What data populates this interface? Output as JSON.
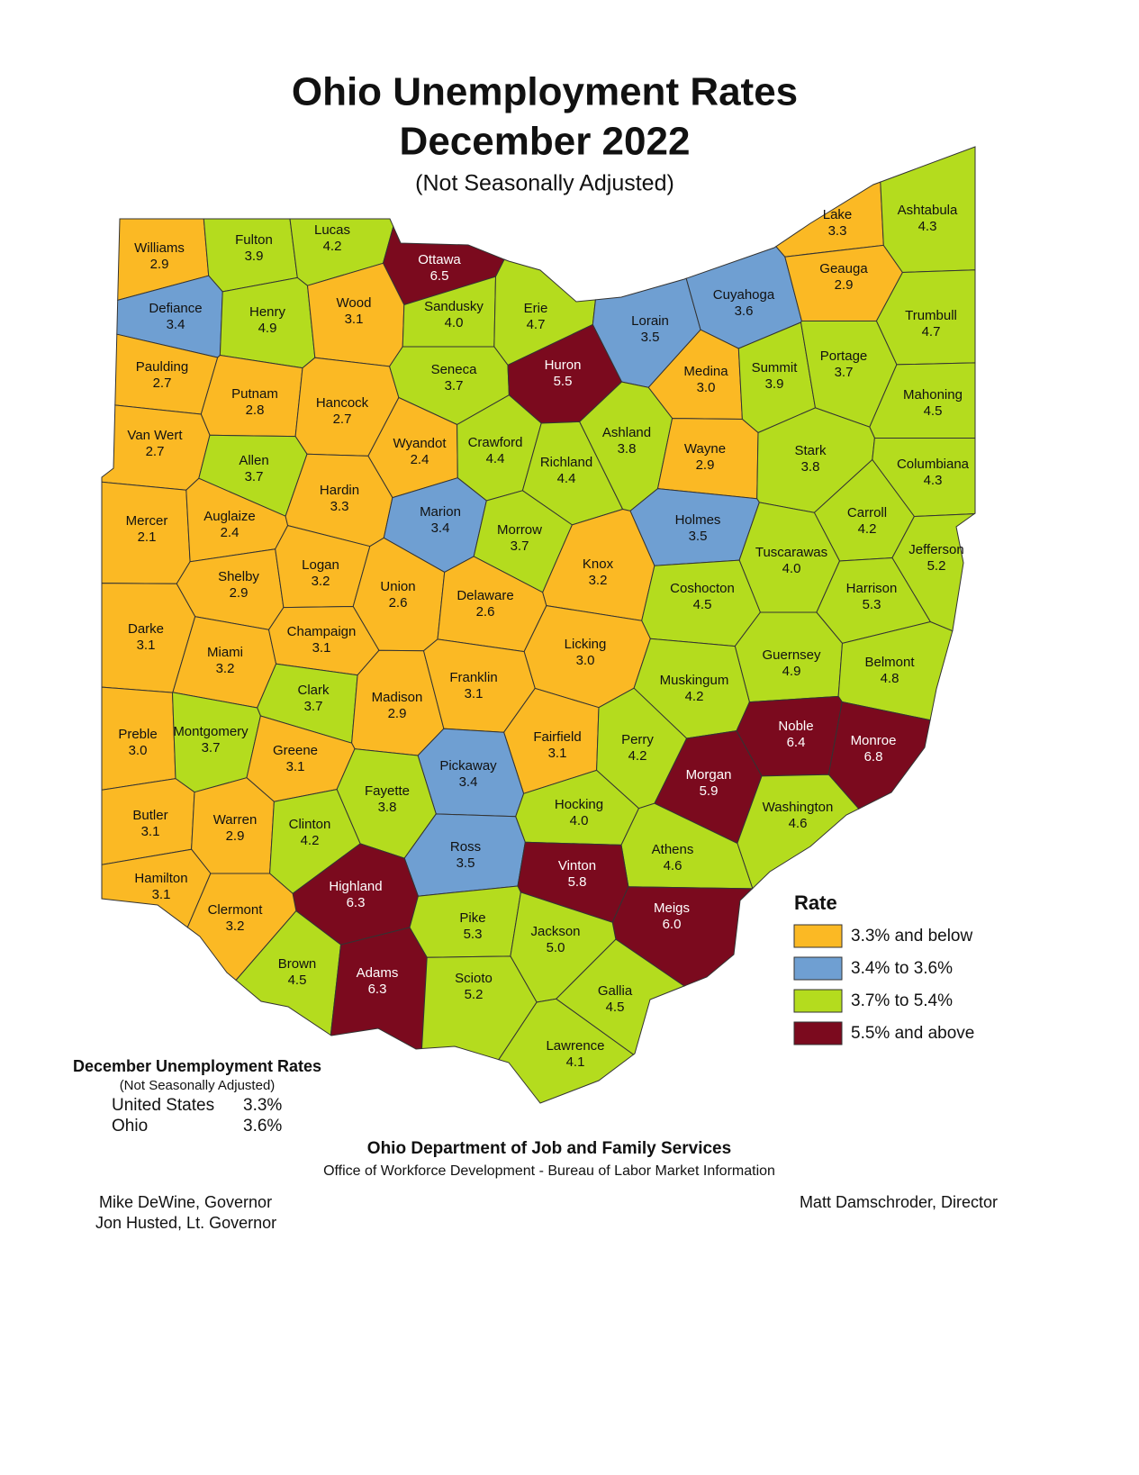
{
  "map": {
    "type": "choropleth",
    "title": "Ohio Unemployment Rates",
    "subtitle": "December 2022",
    "note": "(Not Seasonally Adjusted)",
    "regions": [
      "Williams",
      "Fulton",
      "Lucas",
      "Ottawa",
      "Defiance",
      "Henry",
      "Wood",
      "Sandusky",
      "Erie",
      "Lorain",
      "Cuyahoga",
      "Lake",
      "Geauga",
      "Ashtabula",
      "Trumbull",
      "Paulding",
      "Putnam",
      "Hancock",
      "Seneca",
      "Huron",
      "Medina",
      "Summit",
      "Portage",
      "Mahoning",
      "Van Wert",
      "Allen",
      "Wyandot",
      "Crawford",
      "Richland",
      "Ashland",
      "Wayne",
      "Stark",
      "Columbiana",
      "Mercer",
      "Auglaize",
      "Hardin",
      "Marion",
      "Morrow",
      "Holmes",
      "Carroll",
      "Tuscarawas",
      "Jefferson",
      "Shelby",
      "Logan",
      "Union",
      "Delaware",
      "Knox",
      "Coshocton",
      "Harrison",
      "Darke",
      "Miami",
      "Champaign",
      "Licking",
      "Guernsey",
      "Belmont",
      "Muskingum",
      "Clark",
      "Madison",
      "Franklin",
      "Preble",
      "Montgomery",
      "Greene",
      "Fairfield",
      "Perry",
      "Noble",
      "Monroe",
      "Pickaway",
      "Morgan",
      "Fayette",
      "Butler",
      "Warren",
      "Clinton",
      "Hocking",
      "Washington",
      "Ross",
      "Athens",
      "Vinton",
      "Hamilton",
      "Highland",
      "Clermont",
      "Meigs",
      "Pike",
      "Jackson",
      "Brown",
      "Adams",
      "Scioto",
      "Gallia",
      "Lawrence"
    ],
    "values": [
      2.9,
      3.9,
      4.2,
      6.5,
      3.4,
      4.9,
      3.1,
      4.0,
      4.7,
      3.5,
      3.6,
      3.3,
      2.9,
      4.3,
      4.7,
      2.7,
      2.8,
      2.7,
      3.7,
      5.5,
      3.0,
      3.9,
      3.7,
      4.5,
      2.7,
      3.7,
      2.4,
      4.4,
      4.4,
      3.8,
      2.9,
      3.8,
      4.3,
      2.1,
      2.4,
      3.3,
      3.4,
      3.7,
      3.5,
      4.2,
      4.0,
      5.2,
      2.9,
      3.2,
      2.6,
      2.6,
      3.2,
      4.5,
      5.3,
      3.1,
      3.2,
      3.1,
      3.0,
      4.9,
      4.8,
      4.2,
      3.7,
      2.9,
      3.1,
      3.0,
      3.7,
      3.1,
      3.1,
      4.2,
      6.4,
      6.8,
      3.4,
      5.9,
      3.8,
      3.1,
      2.9,
      4.2,
      4.0,
      4.6,
      3.5,
      4.6,
      5.8,
      3.1,
      6.3,
      3.2,
      6.0,
      5.3,
      5.0,
      4.5,
      6.3,
      5.2,
      4.5,
      4.1
    ],
    "value_labels": [
      "2.9",
      "3.9",
      "4.2",
      "6.5",
      "3.4",
      "4.9",
      "3.1",
      "4.0",
      "4.7",
      "3.5",
      "3.6",
      "3.3",
      "2.9",
      "4.3",
      "4.7",
      "2.7",
      "2.8",
      "2.7",
      "3.7",
      "5.5",
      "3.0",
      "3.9",
      "3.7",
      "4.5",
      "2.7",
      "3.7",
      "2.4",
      "4.4",
      "4.4",
      "3.8",
      "2.9",
      "3.8",
      "4.3",
      "2.1",
      "2.4",
      "3.3",
      "3.4",
      "3.7",
      "3.5",
      "4.2",
      "4.0",
      "5.2",
      "2.9",
      "3.2",
      "2.6",
      "2.6",
      "3.2",
      "4.5",
      "5.3",
      "3.1",
      "3.2",
      "3.1",
      "3.0",
      "4.9",
      "4.8",
      "4.2",
      "3.7",
      "2.9",
      "3.1",
      "3.0",
      "3.7",
      "3.1",
      "3.1",
      "4.2",
      "6.4",
      "6.8",
      "3.4",
      "5.9",
      "3.8",
      "3.1",
      "2.9",
      "4.2",
      "4.0",
      "4.6",
      "3.5",
      "4.6",
      "5.8",
      "3.1",
      "6.3",
      "3.2",
      "6.0",
      "5.3",
      "5.0",
      "4.5",
      "6.3",
      "5.2",
      "4.5",
      "4.1"
    ],
    "legend": {
      "title": "Rate",
      "items": [
        {
          "label": "3.3% and below",
          "color": "#fbb924",
          "max": 3.3
        },
        {
          "label": "3.4% to 3.6%",
          "color": "#6f9fd2",
          "min": 3.4,
          "max": 3.6
        },
        {
          "label": "3.7% to 5.4%",
          "color": "#b4dc1e",
          "min": 3.7,
          "max": 5.4
        },
        {
          "label": "5.5% and above",
          "color": "#7b0a1e",
          "min": 5.5
        }
      ]
    },
    "comparison": {
      "title": "December Unemployment Rates",
      "note": "(Not Seasonally Adjusted)",
      "rows": [
        [
          "United States",
          "3.3%"
        ],
        [
          "Ohio",
          "3.6%"
        ]
      ]
    },
    "footer": {
      "agency": "Ohio Department of Job and Family Services",
      "office": "Office of Workforce Development - Bureau of Labor Market Information",
      "governor": "Mike DeWine, Governor",
      "lt_governor": "Jon Husted, Lt. Governor",
      "director": "Matt Damschroder, Director"
    }
  }
}
